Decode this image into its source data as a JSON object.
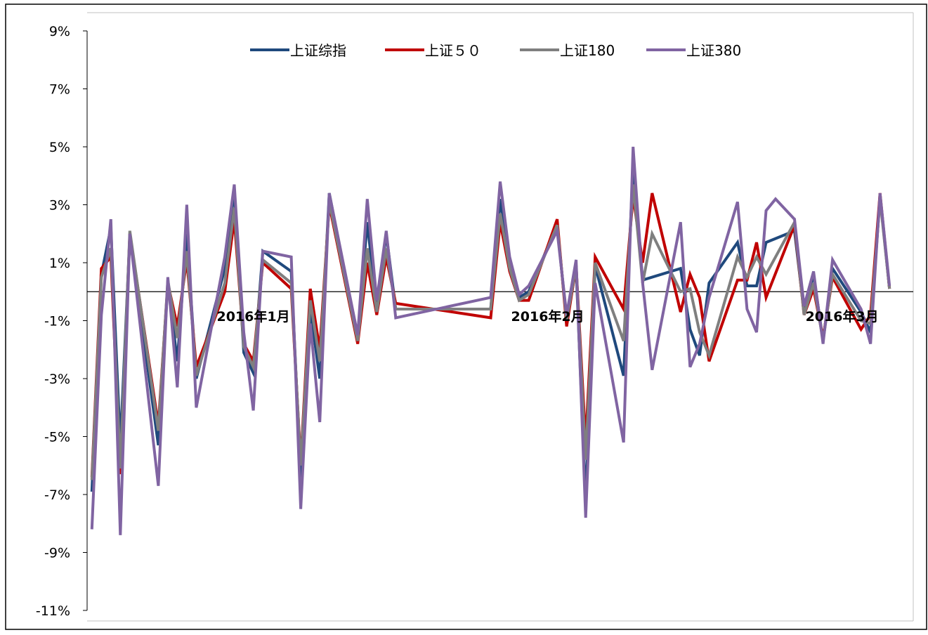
{
  "chart_data": {
    "type": "line",
    "title": "",
    "xlabel": "",
    "ylabel": "",
    "ylim": [
      -11,
      9
    ],
    "yticks": [
      "9%",
      "7%",
      "5%",
      "3%",
      "1%",
      "-1%",
      "-3%",
      "-5%",
      "-7%",
      "-9%",
      "-11%"
    ],
    "ytick_values": [
      9,
      7,
      5,
      3,
      1,
      -1,
      -3,
      -5,
      -7,
      -9,
      -11
    ],
    "x_range": [
      -0.5,
      86.5
    ],
    "month_labels": [
      {
        "text": "2016年1月",
        "x": 17
      },
      {
        "text": "2016年2月",
        "x": 48
      },
      {
        "text": "2016年3月",
        "x": 79
      }
    ],
    "zero_line": true,
    "grid": false,
    "legend_position": "top",
    "series": [
      {
        "name": "上证综指",
        "color": "#1f497d",
        "points": [
          [
            0,
            -6.9
          ],
          [
            1,
            0.6
          ],
          [
            2,
            2.2
          ],
          [
            3,
            -5.3
          ],
          [
            4,
            1.9
          ],
          [
            7,
            -5.3
          ],
          [
            8,
            0.3
          ],
          [
            9,
            -2.4
          ],
          [
            10,
            2.0
          ],
          [
            11,
            -3.0
          ],
          [
            14,
            0.8
          ],
          [
            15,
            3.5
          ],
          [
            16,
            -2.1
          ],
          [
            17,
            -2.8
          ],
          [
            18,
            1.4
          ],
          [
            21,
            0.7
          ],
          [
            22,
            -6.4
          ],
          [
            23,
            -0.6
          ],
          [
            24,
            -3.0
          ],
          [
            25,
            3.4
          ],
          [
            28,
            -1.6
          ],
          [
            29,
            2.4
          ],
          [
            30,
            -0.6
          ],
          [
            31,
            2.0
          ],
          [
            32,
            -0.6
          ],
          [
            42,
            -0.6
          ],
          [
            43,
            3.2
          ],
          [
            44,
            0.8
          ],
          [
            45,
            -0.2
          ],
          [
            46,
            0.0
          ],
          [
            49,
            2.3
          ],
          [
            50,
            -1.0
          ],
          [
            51,
            0.8
          ],
          [
            52,
            -7.2
          ],
          [
            53,
            0.9
          ],
          [
            56,
            -2.9
          ],
          [
            57,
            4.3
          ],
          [
            58,
            0.4
          ],
          [
            59,
            0.5
          ],
          [
            62,
            0.8
          ],
          [
            63,
            -1.3
          ],
          [
            64,
            -2.2
          ],
          [
            65,
            0.3
          ],
          [
            68,
            1.7
          ],
          [
            69,
            0.2
          ],
          [
            70,
            0.2
          ],
          [
            71,
            1.7
          ],
          [
            74,
            2.1
          ],
          [
            75,
            -0.7
          ],
          [
            76,
            0.6
          ],
          [
            77,
            -1.7
          ],
          [
            78,
            0.8
          ],
          [
            81,
            -0.7
          ],
          [
            82,
            -1.4
          ],
          [
            83,
            3.3
          ],
          [
            84,
            0.1
          ]
        ]
      },
      {
        "name": "上证５０",
        "color": "#c00000",
        "points": [
          [
            0,
            -6.4
          ],
          [
            1,
            0.8
          ],
          [
            2,
            1.2
          ],
          [
            3,
            -6.3
          ],
          [
            4,
            2.0
          ],
          [
            7,
            -4.6
          ],
          [
            8,
            0.3
          ],
          [
            9,
            -1.2
          ],
          [
            10,
            1.1
          ],
          [
            11,
            -2.6
          ],
          [
            14,
            0.0
          ],
          [
            15,
            2.5
          ],
          [
            16,
            -1.8
          ],
          [
            17,
            -2.4
          ],
          [
            18,
            1.0
          ],
          [
            21,
            0.1
          ],
          [
            22,
            -5.9
          ],
          [
            23,
            0.1
          ],
          [
            24,
            -2.0
          ],
          [
            25,
            3.0
          ],
          [
            28,
            -1.8
          ],
          [
            29,
            1.0
          ],
          [
            30,
            -0.8
          ],
          [
            31,
            1.2
          ],
          [
            32,
            -0.4
          ],
          [
            42,
            -0.9
          ],
          [
            43,
            2.4
          ],
          [
            44,
            0.7
          ],
          [
            45,
            -0.3
          ],
          [
            46,
            -0.3
          ],
          [
            49,
            2.5
          ],
          [
            50,
            -1.2
          ],
          [
            51,
            0.9
          ],
          [
            52,
            -5.2
          ],
          [
            53,
            1.2
          ],
          [
            56,
            -0.6
          ],
          [
            57,
            3.3
          ],
          [
            58,
            1.0
          ],
          [
            59,
            3.4
          ],
          [
            62,
            -0.7
          ],
          [
            63,
            0.6
          ],
          [
            64,
            -0.2
          ],
          [
            65,
            -2.4
          ],
          [
            68,
            0.4
          ],
          [
            69,
            0.4
          ],
          [
            70,
            1.7
          ],
          [
            71,
            -0.2
          ],
          [
            74,
            2.3
          ],
          [
            75,
            -0.8
          ],
          [
            76,
            0.1
          ],
          [
            77,
            -1.6
          ],
          [
            78,
            0.5
          ],
          [
            81,
            -1.3
          ],
          [
            82,
            -0.8
          ],
          [
            83,
            3.4
          ],
          [
            84,
            0.1
          ]
        ]
      },
      {
        "name": "上证180",
        "color": "#7f7f7f",
        "points": [
          [
            0,
            -6.5
          ],
          [
            1,
            0.5
          ],
          [
            2,
            1.5
          ],
          [
            3,
            -6.1
          ],
          [
            4,
            2.1
          ],
          [
            7,
            -4.8
          ],
          [
            8,
            0.4
          ],
          [
            9,
            -1.6
          ],
          [
            10,
            1.4
          ],
          [
            11,
            -2.9
          ],
          [
            14,
            0.3
          ],
          [
            15,
            2.9
          ],
          [
            16,
            -1.9
          ],
          [
            17,
            -2.6
          ],
          [
            18,
            1.1
          ],
          [
            21,
            0.3
          ],
          [
            22,
            -6.0
          ],
          [
            23,
            -0.3
          ],
          [
            24,
            -2.4
          ],
          [
            25,
            3.1
          ],
          [
            28,
            -1.7
          ],
          [
            29,
            1.5
          ],
          [
            30,
            -0.7
          ],
          [
            31,
            1.5
          ],
          [
            32,
            -0.6
          ],
          [
            42,
            -0.6
          ],
          [
            43,
            2.7
          ],
          [
            44,
            0.8
          ],
          [
            45,
            -0.3
          ],
          [
            46,
            -0.1
          ],
          [
            49,
            2.3
          ],
          [
            50,
            -1.0
          ],
          [
            51,
            0.9
          ],
          [
            52,
            -5.8
          ],
          [
            53,
            1.0
          ],
          [
            56,
            -1.7
          ],
          [
            57,
            3.7
          ],
          [
            58,
            0.3
          ],
          [
            59,
            2.0
          ],
          [
            62,
            0.0
          ],
          [
            63,
            0.1
          ],
          [
            64,
            -1.4
          ],
          [
            65,
            -2.2
          ],
          [
            68,
            1.2
          ],
          [
            69,
            0.5
          ],
          [
            70,
            1.2
          ],
          [
            71,
            0.6
          ],
          [
            74,
            2.4
          ],
          [
            75,
            -0.8
          ],
          [
            76,
            0.3
          ],
          [
            77,
            -1.7
          ],
          [
            78,
            0.6
          ],
          [
            81,
            -1.0
          ],
          [
            82,
            -1.1
          ],
          [
            83,
            3.2
          ],
          [
            84,
            0.1
          ]
        ]
      },
      {
        "name": "上证380",
        "color": "#8064a2",
        "points": [
          [
            0,
            -8.2
          ],
          [
            1,
            -0.8
          ],
          [
            2,
            2.5
          ],
          [
            3,
            -8.4
          ],
          [
            4,
            2.0
          ],
          [
            7,
            -6.7
          ],
          [
            8,
            0.5
          ],
          [
            9,
            -3.3
          ],
          [
            10,
            3.0
          ],
          [
            11,
            -4.0
          ],
          [
            14,
            1.2
          ],
          [
            15,
            3.7
          ],
          [
            16,
            -1.4
          ],
          [
            17,
            -4.1
          ],
          [
            18,
            1.4
          ],
          [
            21,
            1.2
          ],
          [
            22,
            -7.5
          ],
          [
            23,
            -1.1
          ],
          [
            24,
            -4.5
          ],
          [
            25,
            3.4
          ],
          [
            28,
            -1.5
          ],
          [
            29,
            3.2
          ],
          [
            30,
            -0.3
          ],
          [
            31,
            2.1
          ],
          [
            32,
            -0.9
          ],
          [
            42,
            -0.2
          ],
          [
            43,
            3.8
          ],
          [
            44,
            1.2
          ],
          [
            45,
            -0.1
          ],
          [
            46,
            0.2
          ],
          [
            49,
            2.1
          ],
          [
            50,
            -0.8
          ],
          [
            51,
            1.1
          ],
          [
            52,
            -7.8
          ],
          [
            53,
            0.3
          ],
          [
            56,
            -5.2
          ],
          [
            57,
            5.0
          ],
          [
            58,
            0.3
          ],
          [
            59,
            -2.7
          ],
          [
            62,
            2.4
          ],
          [
            63,
            -2.6
          ],
          [
            64,
            -1.8
          ],
          [
            65,
            -0.2
          ],
          [
            68,
            3.1
          ],
          [
            69,
            -0.6
          ],
          [
            70,
            -1.4
          ],
          [
            71,
            2.8
          ],
          [
            72,
            3.2
          ],
          [
            74,
            2.5
          ],
          [
            75,
            -0.5
          ],
          [
            76,
            0.7
          ],
          [
            77,
            -1.8
          ],
          [
            78,
            1.1
          ],
          [
            81,
            -0.6
          ],
          [
            82,
            -1.8
          ],
          [
            83,
            3.4
          ],
          [
            84,
            0.2
          ]
        ]
      }
    ]
  }
}
